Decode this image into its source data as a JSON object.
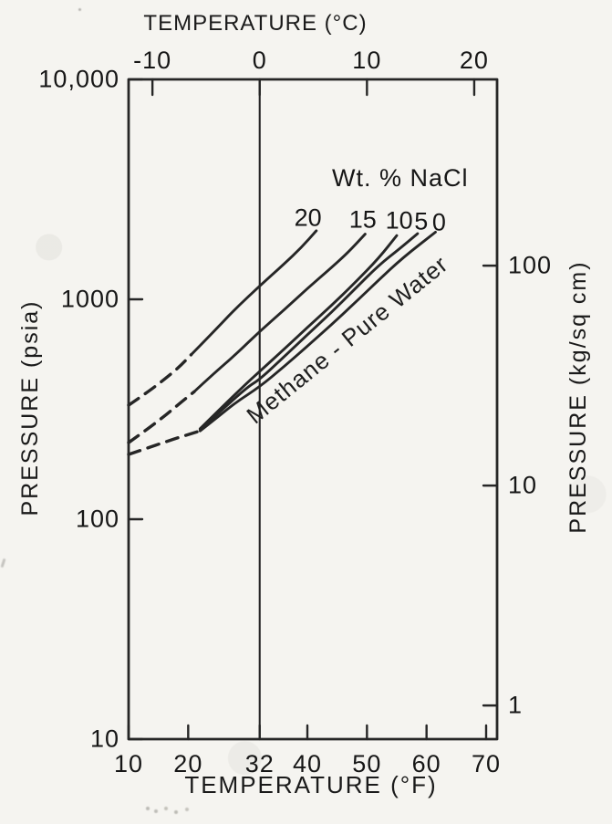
{
  "figure": {
    "top_axis_title": "TEMPERATURE (°C)",
    "bottom_axis_title": "TEMPERATURE (°F)",
    "left_axis_title": "PRESSURE (psia)",
    "right_axis_title": "PRESSURE (kg/sq cm)",
    "legend_title": "Wt. % NaCl",
    "curve_annotation": "Methane - Pure Water"
  },
  "chart_data": {
    "type": "line",
    "title": "",
    "legend_title": "Wt. % NaCl",
    "annotation": "Methane - Pure Water",
    "x_axis_bottom": {
      "label": "TEMPERATURE (°F)",
      "units": "°F",
      "scale": "linear",
      "range": [
        10,
        72
      ],
      "ticks": [
        10,
        20,
        32,
        40,
        50,
        60,
        70
      ]
    },
    "x_axis_top": {
      "label": "TEMPERATURE (°C)",
      "units": "°C",
      "scale": "linear",
      "ticks": [
        -10,
        0,
        10,
        20
      ]
    },
    "y_axis_left": {
      "label": "PRESSURE (psia)",
      "scale": "log",
      "range": [
        10,
        10000
      ],
      "ticks": [
        10,
        100,
        1000,
        10000
      ],
      "tick_labels": [
        "10",
        "100",
        "1000",
        "10,000"
      ]
    },
    "y_axis_right": {
      "label": "PRESSURE (kg/sq cm)",
      "scale": "log",
      "ticks": [
        1,
        10,
        100
      ],
      "tick_labels": [
        "1",
        "10",
        "100"
      ],
      "psia_per_unit": 14.223
    },
    "freezing_line_f": 32,
    "series": [
      {
        "name": "20 wt% NaCl",
        "label": "20",
        "label_at": [
          40.1,
          2350
        ],
        "dashed": [
          [
            10,
            330
          ],
          [
            13,
            375
          ],
          [
            16,
            432
          ],
          [
            18.5,
            492
          ],
          [
            20.5,
            560
          ]
        ],
        "solid": [
          [
            20.5,
            560
          ],
          [
            24,
            700
          ],
          [
            28,
            910
          ],
          [
            32,
            1150
          ],
          [
            36,
            1440
          ],
          [
            39,
            1720
          ],
          [
            41.5,
            2050
          ]
        ]
      },
      {
        "name": "15 wt% NaCl",
        "label": "15",
        "label_at": [
          49.3,
          2300
        ],
        "dashed": [
          [
            10,
            223
          ],
          [
            13,
            255
          ],
          [
            16,
            294
          ],
          [
            18.5,
            335
          ],
          [
            21,
            380
          ]
        ],
        "solid": [
          [
            21,
            380
          ],
          [
            24,
            452
          ],
          [
            28,
            562
          ],
          [
            32,
            715
          ],
          [
            36,
            890
          ],
          [
            40,
            1120
          ],
          [
            44,
            1390
          ],
          [
            47,
            1650
          ],
          [
            49.7,
            1980
          ]
        ]
      },
      {
        "name": "10 wt% NaCl",
        "label": "10",
        "label_at": [
          55.4,
          2280
        ],
        "dashed": [],
        "solid": [
          [
            22,
            258
          ],
          [
            26,
            330
          ],
          [
            30,
            420
          ],
          [
            32,
            470
          ],
          [
            36,
            590
          ],
          [
            40,
            745
          ],
          [
            44,
            935
          ],
          [
            48,
            1190
          ],
          [
            52,
            1540
          ],
          [
            55,
            1950
          ]
        ]
      },
      {
        "name": "5 wt% NaCl",
        "label": "5",
        "label_at": [
          59.1,
          2260
        ],
        "dashed": [],
        "solid": [
          [
            22,
            256
          ],
          [
            26,
            320
          ],
          [
            30,
            400
          ],
          [
            32,
            432
          ],
          [
            36,
            545
          ],
          [
            40,
            690
          ],
          [
            44,
            870
          ],
          [
            48,
            1115
          ],
          [
            52,
            1430
          ],
          [
            55.5,
            1700
          ],
          [
            58.5,
            1990
          ]
        ]
      },
      {
        "name": "0 wt% NaCl (Methane - Pure Water)",
        "label": "0",
        "label_at": [
          62.1,
          2240
        ],
        "dashed": [
          [
            10,
            197
          ],
          [
            13,
            210
          ],
          [
            16,
            224
          ],
          [
            19,
            238
          ],
          [
            22,
            252
          ]
        ],
        "solid": [
          [
            22,
            252
          ],
          [
            25,
            292
          ],
          [
            28,
            340
          ],
          [
            32,
            400
          ],
          [
            36,
            492
          ],
          [
            40,
            612
          ],
          [
            44,
            765
          ],
          [
            48,
            965
          ],
          [
            52,
            1225
          ],
          [
            56,
            1545
          ],
          [
            61.5,
            2020
          ]
        ]
      }
    ]
  }
}
